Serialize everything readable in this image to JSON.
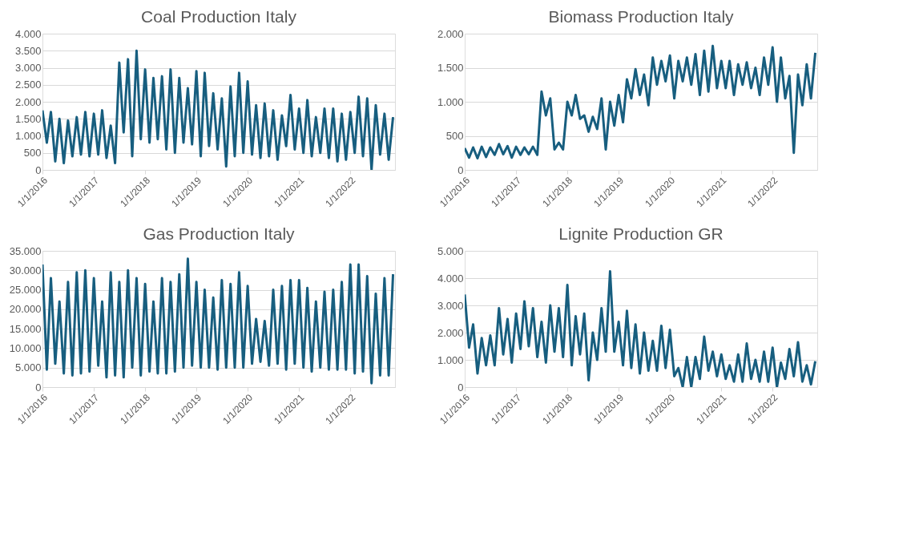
{
  "chart_data": [
    {
      "type": "line",
      "title": "Coal Production Italy",
      "grid": "y",
      "legend": false,
      "x": [
        "2016-01",
        "2016-02",
        "2016-03",
        "2016-04",
        "2016-05",
        "2016-06",
        "2016-07",
        "2016-08",
        "2016-09",
        "2016-10",
        "2016-11",
        "2016-12",
        "2017-01",
        "2017-02",
        "2017-03",
        "2017-04",
        "2017-05",
        "2017-06",
        "2017-07",
        "2017-08",
        "2017-09",
        "2017-10",
        "2017-11",
        "2017-12",
        "2018-01",
        "2018-02",
        "2018-03",
        "2018-04",
        "2018-05",
        "2018-06",
        "2018-07",
        "2018-08",
        "2018-09",
        "2018-10",
        "2018-11",
        "2018-12",
        "2019-01",
        "2019-02",
        "2019-03",
        "2019-04",
        "2019-05",
        "2019-06",
        "2019-07",
        "2019-08",
        "2019-09",
        "2019-10",
        "2019-11",
        "2019-12",
        "2020-01",
        "2020-02",
        "2020-03",
        "2020-04",
        "2020-05",
        "2020-06",
        "2020-07",
        "2020-08",
        "2020-09",
        "2020-10",
        "2020-11",
        "2020-12",
        "2021-01",
        "2021-02",
        "2021-03",
        "2021-04",
        "2021-05",
        "2021-06",
        "2021-07",
        "2021-08",
        "2021-09",
        "2021-10",
        "2021-11",
        "2021-12",
        "2022-01",
        "2022-02",
        "2022-03",
        "2022-04",
        "2022-05",
        "2022-06",
        "2022-07",
        "2022-08",
        "2022-09",
        "2022-10",
        "2022-11"
      ],
      "xlim": [
        "2016-01-01",
        "2022-11-15"
      ],
      "xticks": [
        {
          "value": "2016-01-01",
          "label": "1/1/2016"
        },
        {
          "value": "2017-01-01",
          "label": "1/1/2017"
        },
        {
          "value": "2018-01-01",
          "label": "1/1/2018"
        },
        {
          "value": "2019-01-01",
          "label": "1/1/2019"
        },
        {
          "value": "2020-01-01",
          "label": "1/1/2020"
        },
        {
          "value": "2021-01-01",
          "label": "1/1/2021"
        },
        {
          "value": "2022-01-01",
          "label": "1/1/2022"
        }
      ],
      "ylim": [
        0,
        4000
      ],
      "yticks": [
        0,
        500,
        {
          "value": 1000,
          "label": "1.000"
        },
        {
          "value": 1500,
          "label": "1.500"
        },
        {
          "value": 2000,
          "label": "2.000"
        },
        {
          "value": 2500,
          "label": "2.500"
        },
        {
          "value": 3000,
          "label": "3.000"
        },
        {
          "value": 3500,
          "label": "3.500"
        },
        {
          "value": 4000,
          "label": "4.000"
        }
      ],
      "series": [
        {
          "color": "#175e7f",
          "values": [
            1750,
            800,
            1700,
            250,
            1500,
            200,
            1450,
            400,
            1550,
            450,
            1700,
            400,
            1650,
            450,
            1750,
            350,
            1300,
            200,
            3150,
            1100,
            3250,
            400,
            3500,
            900,
            2950,
            800,
            2700,
            900,
            2750,
            600,
            2950,
            500,
            2700,
            800,
            2400,
            750,
            2900,
            400,
            2850,
            700,
            2250,
            600,
            2100,
            100,
            2450,
            400,
            2850,
            500,
            2600,
            450,
            1900,
            350,
            1950,
            400,
            1750,
            300,
            1600,
            700,
            2200,
            600,
            1800,
            500,
            2050,
            400,
            1550,
            500,
            1800,
            350,
            1800,
            250,
            1650,
            300,
            1700,
            500,
            2150,
            400,
            2100,
            0,
            1900,
            450,
            1650,
            300,
            1550
          ]
        }
      ]
    },
    {
      "type": "line",
      "title": "Biomass Production Italy",
      "grid": "y",
      "legend": false,
      "x": [
        "2016-01",
        "2016-02",
        "2016-03",
        "2016-04",
        "2016-05",
        "2016-06",
        "2016-07",
        "2016-08",
        "2016-09",
        "2016-10",
        "2016-11",
        "2016-12",
        "2017-01",
        "2017-02",
        "2017-03",
        "2017-04",
        "2017-05",
        "2017-06",
        "2017-07",
        "2017-08",
        "2017-09",
        "2017-10",
        "2017-11",
        "2017-12",
        "2018-01",
        "2018-02",
        "2018-03",
        "2018-04",
        "2018-05",
        "2018-06",
        "2018-07",
        "2018-08",
        "2018-09",
        "2018-10",
        "2018-11",
        "2018-12",
        "2019-01",
        "2019-02",
        "2019-03",
        "2019-04",
        "2019-05",
        "2019-06",
        "2019-07",
        "2019-08",
        "2019-09",
        "2019-10",
        "2019-11",
        "2019-12",
        "2020-01",
        "2020-02",
        "2020-03",
        "2020-04",
        "2020-05",
        "2020-06",
        "2020-07",
        "2020-08",
        "2020-09",
        "2020-10",
        "2020-11",
        "2020-12",
        "2021-01",
        "2021-02",
        "2021-03",
        "2021-04",
        "2021-05",
        "2021-06",
        "2021-07",
        "2021-08",
        "2021-09",
        "2021-10",
        "2021-11",
        "2021-12",
        "2022-01",
        "2022-02",
        "2022-03",
        "2022-04",
        "2022-05",
        "2022-06",
        "2022-07",
        "2022-08",
        "2022-09",
        "2022-10",
        "2022-11"
      ],
      "xlim": [
        "2016-01-01",
        "2022-11-15"
      ],
      "xticks": [
        {
          "value": "2016-01-01",
          "label": "1/1/2016"
        },
        {
          "value": "2017-01-01",
          "label": "1/1/2017"
        },
        {
          "value": "2018-01-01",
          "label": "1/1/2018"
        },
        {
          "value": "2019-01-01",
          "label": "1/1/2019"
        },
        {
          "value": "2020-01-01",
          "label": "1/1/2020"
        },
        {
          "value": "2021-01-01",
          "label": "1/1/2021"
        },
        {
          "value": "2022-01-01",
          "label": "1/1/2022"
        }
      ],
      "ylim": [
        0,
        2000
      ],
      "yticks": [
        0,
        500,
        {
          "value": 1000,
          "label": "1.000"
        },
        {
          "value": 1500,
          "label": "1.500"
        },
        {
          "value": 2000,
          "label": "2.000"
        }
      ],
      "series": [
        {
          "color": "#175e7f",
          "values": [
            320,
            180,
            330,
            170,
            340,
            190,
            330,
            220,
            380,
            230,
            350,
            180,
            340,
            220,
            330,
            230,
            340,
            220,
            1150,
            800,
            1050,
            300,
            400,
            300,
            1000,
            800,
            1100,
            750,
            800,
            560,
            780,
            600,
            1050,
            300,
            1000,
            650,
            1100,
            700,
            1330,
            1050,
            1480,
            1100,
            1400,
            950,
            1650,
            1250,
            1600,
            1300,
            1680,
            1050,
            1600,
            1300,
            1650,
            1250,
            1700,
            1100,
            1750,
            1150,
            1820,
            1200,
            1600,
            1200,
            1600,
            1100,
            1550,
            1250,
            1580,
            1200,
            1500,
            1100,
            1650,
            1250,
            1800,
            1000,
            1650,
            1050,
            1380,
            250,
            1400,
            950,
            1550,
            1050,
            1720
          ]
        }
      ]
    },
    {
      "type": "line",
      "title": "Gas Production Italy",
      "grid": "y",
      "legend": false,
      "x": [
        "2016-01",
        "2016-02",
        "2016-03",
        "2016-04",
        "2016-05",
        "2016-06",
        "2016-07",
        "2016-08",
        "2016-09",
        "2016-10",
        "2016-11",
        "2016-12",
        "2017-01",
        "2017-02",
        "2017-03",
        "2017-04",
        "2017-05",
        "2017-06",
        "2017-07",
        "2017-08",
        "2017-09",
        "2017-10",
        "2017-11",
        "2017-12",
        "2018-01",
        "2018-02",
        "2018-03",
        "2018-04",
        "2018-05",
        "2018-06",
        "2018-07",
        "2018-08",
        "2018-09",
        "2018-10",
        "2018-11",
        "2018-12",
        "2019-01",
        "2019-02",
        "2019-03",
        "2019-04",
        "2019-05",
        "2019-06",
        "2019-07",
        "2019-08",
        "2019-09",
        "2019-10",
        "2019-11",
        "2019-12",
        "2020-01",
        "2020-02",
        "2020-03",
        "2020-04",
        "2020-05",
        "2020-06",
        "2020-07",
        "2020-08",
        "2020-09",
        "2020-10",
        "2020-11",
        "2020-12",
        "2021-01",
        "2021-02",
        "2021-03",
        "2021-04",
        "2021-05",
        "2021-06",
        "2021-07",
        "2021-08",
        "2021-09",
        "2021-10",
        "2021-11",
        "2021-12",
        "2022-01",
        "2022-02",
        "2022-03",
        "2022-04",
        "2022-05",
        "2022-06",
        "2022-07",
        "2022-08",
        "2022-09",
        "2022-10",
        "2022-11"
      ],
      "xlim": [
        "2016-01-01",
        "2022-11-15"
      ],
      "xticks": [
        {
          "value": "2016-01-01",
          "label": "1/1/2016"
        },
        {
          "value": "2017-01-01",
          "label": "1/1/2017"
        },
        {
          "value": "2018-01-01",
          "label": "1/1/2018"
        },
        {
          "value": "2019-01-01",
          "label": "1/1/2019"
        },
        {
          "value": "2020-01-01",
          "label": "1/1/2020"
        },
        {
          "value": "2021-01-01",
          "label": "1/1/2021"
        },
        {
          "value": "2022-01-01",
          "label": "1/1/2022"
        }
      ],
      "ylim": [
        0,
        35000
      ],
      "yticks": [
        0,
        {
          "value": 5000,
          "label": "5.000"
        },
        {
          "value": 10000,
          "label": "10.000"
        },
        {
          "value": 15000,
          "label": "15.000"
        },
        {
          "value": 20000,
          "label": "20.000"
        },
        {
          "value": 25000,
          "label": "25.000"
        },
        {
          "value": 30000,
          "label": "30.000"
        },
        {
          "value": 35000,
          "label": "35.000"
        }
      ],
      "series": [
        {
          "color": "#175e7f",
          "values": [
            31500,
            4500,
            28000,
            6000,
            22000,
            3500,
            27000,
            3000,
            29500,
            3500,
            30000,
            4000,
            28000,
            5500,
            22000,
            2500,
            29500,
            3000,
            27000,
            2500,
            30000,
            5000,
            28000,
            3000,
            26500,
            4000,
            22000,
            3500,
            28000,
            3500,
            27000,
            4000,
            29000,
            5000,
            33000,
            5500,
            27000,
            5000,
            25000,
            5000,
            23000,
            4500,
            27500,
            5000,
            26500,
            5000,
            29500,
            5000,
            26000,
            6000,
            17500,
            6500,
            17000,
            5500,
            25000,
            6000,
            26000,
            4500,
            27500,
            6000,
            27500,
            5000,
            25500,
            4000,
            22000,
            5000,
            24500,
            4500,
            25000,
            4500,
            27000,
            4500,
            31500,
            3500,
            31500,
            4000,
            28500,
            1000,
            24000,
            3000,
            28000,
            3000,
            29000
          ]
        }
      ]
    },
    {
      "type": "line",
      "title": "Lignite Production GR",
      "grid": "y",
      "legend": false,
      "x": [
        "2016-01",
        "2016-02",
        "2016-03",
        "2016-04",
        "2016-05",
        "2016-06",
        "2016-07",
        "2016-08",
        "2016-09",
        "2016-10",
        "2016-11",
        "2016-12",
        "2017-01",
        "2017-02",
        "2017-03",
        "2017-04",
        "2017-05",
        "2017-06",
        "2017-07",
        "2017-08",
        "2017-09",
        "2017-10",
        "2017-11",
        "2017-12",
        "2018-01",
        "2018-02",
        "2018-03",
        "2018-04",
        "2018-05",
        "2018-06",
        "2018-07",
        "2018-08",
        "2018-09",
        "2018-10",
        "2018-11",
        "2018-12",
        "2019-01",
        "2019-02",
        "2019-03",
        "2019-04",
        "2019-05",
        "2019-06",
        "2019-07",
        "2019-08",
        "2019-09",
        "2019-10",
        "2019-11",
        "2019-12",
        "2020-01",
        "2020-02",
        "2020-03",
        "2020-04",
        "2020-05",
        "2020-06",
        "2020-07",
        "2020-08",
        "2020-09",
        "2020-10",
        "2020-11",
        "2020-12",
        "2021-01",
        "2021-02",
        "2021-03",
        "2021-04",
        "2021-05",
        "2021-06",
        "2021-07",
        "2021-08",
        "2021-09",
        "2021-10",
        "2021-11",
        "2021-12",
        "2022-01",
        "2022-02",
        "2022-03",
        "2022-04",
        "2022-05",
        "2022-06",
        "2022-07",
        "2022-08",
        "2022-09",
        "2022-10",
        "2022-11"
      ],
      "xlim": [
        "2016-01-01",
        "2022-11-15"
      ],
      "xticks": [
        {
          "value": "2016-01-01",
          "label": "1/1/2016"
        },
        {
          "value": "2017-01-01",
          "label": "1/1/2017"
        },
        {
          "value": "2018-01-01",
          "label": "1/1/2018"
        },
        {
          "value": "2019-01-01",
          "label": "1/1/2019"
        },
        {
          "value": "2020-01-01",
          "label": "1/1/2020"
        },
        {
          "value": "2021-01-01",
          "label": "1/1/2021"
        },
        {
          "value": "2022-01-01",
          "label": "1/1/2022"
        }
      ],
      "ylim": [
        0,
        5000
      ],
      "yticks": [
        0,
        {
          "value": 1000,
          "label": "1.000"
        },
        {
          "value": 2000,
          "label": "2.000"
        },
        {
          "value": 3000,
          "label": "3.000"
        },
        {
          "value": 4000,
          "label": "4.000"
        },
        {
          "value": 5000,
          "label": "5.000"
        }
      ],
      "series": [
        {
          "color": "#175e7f",
          "values": [
            3400,
            1450,
            2300,
            500,
            1800,
            800,
            1900,
            800,
            2900,
            1200,
            2500,
            900,
            2700,
            1400,
            3150,
            1500,
            2900,
            1100,
            2400,
            900,
            3000,
            1300,
            2900,
            1100,
            3750,
            800,
            2600,
            1200,
            2700,
            250,
            2000,
            1000,
            2900,
            1300,
            4250,
            1300,
            2400,
            800,
            2800,
            700,
            2300,
            500,
            2000,
            600,
            1700,
            600,
            2250,
            700,
            2100,
            400,
            700,
            0,
            1100,
            0,
            1100,
            300,
            1850,
            600,
            1300,
            400,
            1200,
            300,
            800,
            200,
            1200,
            200,
            1600,
            300,
            1000,
            200,
            1300,
            200,
            1450,
            0,
            900,
            300,
            1400,
            400,
            1650,
            200,
            800,
            100,
            950
          ]
        }
      ]
    }
  ]
}
